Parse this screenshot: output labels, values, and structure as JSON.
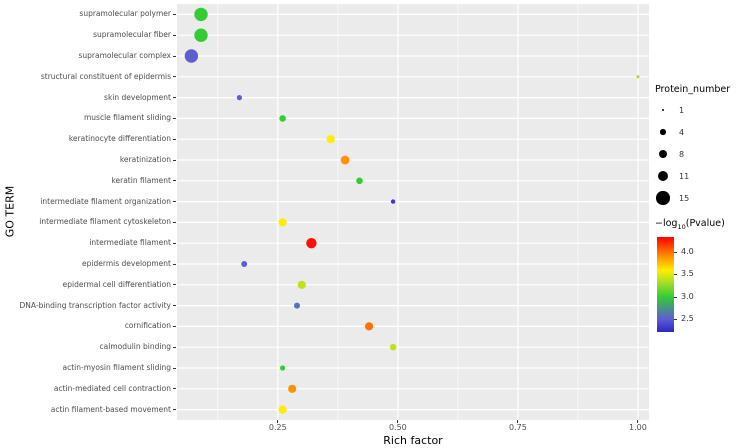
{
  "figure": {
    "color_legend_prefix": "−log",
    "color_legend_sub": "10",
    "color_legend_suffix": "(Pvalue)"
  },
  "chart_data": {
    "type": "scatter",
    "title": "",
    "xlabel": "Rich factor",
    "ylabel": "GO TERM",
    "xlim": [
      0.04,
      1.023
    ],
    "x_ticks": [
      0.25,
      0.5,
      0.75,
      1.0
    ],
    "x_tick_labels": [
      "0.25",
      "0.50",
      "0.75",
      "1.00"
    ],
    "x_minor_ticks": [
      0.125,
      0.375,
      0.625,
      0.875
    ],
    "grid": true,
    "panel_background": "#EBEBEB",
    "gridline_color": "#FFFFFF",
    "size_legend": {
      "title": "Protein_number",
      "values": [
        1,
        4,
        8,
        11,
        15
      ]
    },
    "color_legend": {
      "title": "-log10(Pvalue)",
      "ticks": [
        4.0,
        3.5,
        3.0,
        2.5
      ],
      "range": [
        2.2,
        4.35
      ]
    },
    "points": [
      {
        "term": "supramolecular polymer",
        "rich_factor": 0.09,
        "protein_number": 15,
        "neg_log10_pvalue": 3.0
      },
      {
        "term": "supramolecular fiber",
        "rich_factor": 0.09,
        "protein_number": 15,
        "neg_log10_pvalue": 3.0
      },
      {
        "term": "supramolecular complex",
        "rich_factor": 0.07,
        "protein_number": 15,
        "neg_log10_pvalue": 2.5
      },
      {
        "term": "structural constituent of epidermis",
        "rich_factor": 1.0,
        "protein_number": 1,
        "neg_log10_pvalue": 3.3
      },
      {
        "term": "skin development",
        "rich_factor": 0.17,
        "protein_number": 4,
        "neg_log10_pvalue": 2.5
      },
      {
        "term": "muscle filament sliding",
        "rich_factor": 0.26,
        "protein_number": 6,
        "neg_log10_pvalue": 3.0
      },
      {
        "term": "keratinocyte differentiation",
        "rich_factor": 0.36,
        "protein_number": 8,
        "neg_log10_pvalue": 3.6
      },
      {
        "term": "keratinization",
        "rich_factor": 0.39,
        "protein_number": 9,
        "neg_log10_pvalue": 3.9
      },
      {
        "term": "keratin filament",
        "rich_factor": 0.42,
        "protein_number": 6,
        "neg_log10_pvalue": 3.0
      },
      {
        "term": "intermediate filament organization",
        "rich_factor": 0.49,
        "protein_number": 3,
        "neg_log10_pvalue": 2.3
      },
      {
        "term": "intermediate filament cytoskeleton",
        "rich_factor": 0.26,
        "protein_number": 8,
        "neg_log10_pvalue": 3.6
      },
      {
        "term": "intermediate filament",
        "rich_factor": 0.32,
        "protein_number": 11,
        "neg_log10_pvalue": 4.3
      },
      {
        "term": "epidermis development",
        "rich_factor": 0.18,
        "protein_number": 5,
        "neg_log10_pvalue": 2.5
      },
      {
        "term": "epidermal cell differentiation",
        "rich_factor": 0.3,
        "protein_number": 8,
        "neg_log10_pvalue": 3.4
      },
      {
        "term": "DNA-binding transcription factor activity",
        "rich_factor": 0.29,
        "protein_number": 5,
        "neg_log10_pvalue": 2.6
      },
      {
        "term": "cornification",
        "rich_factor": 0.44,
        "protein_number": 8,
        "neg_log10_pvalue": 4.0
      },
      {
        "term": "calmodulin binding",
        "rich_factor": 0.49,
        "protein_number": 6,
        "neg_log10_pvalue": 3.4
      },
      {
        "term": "actin-myosin filament sliding",
        "rich_factor": 0.26,
        "protein_number": 4,
        "neg_log10_pvalue": 3.0
      },
      {
        "term": "actin-mediated cell contraction",
        "rich_factor": 0.28,
        "protein_number": 8,
        "neg_log10_pvalue": 3.9
      },
      {
        "term": "actin filament-based movement",
        "rich_factor": 0.26,
        "protein_number": 8,
        "neg_log10_pvalue": 3.6
      }
    ]
  }
}
